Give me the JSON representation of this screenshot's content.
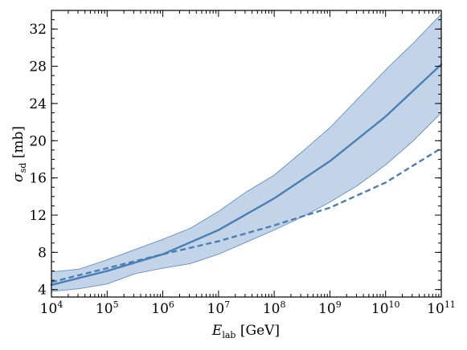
{
  "chart_data": {
    "type": "line",
    "xscale": "log",
    "xlim": [
      10000,
      100000000000
    ],
    "ylim": [
      3.2,
      34
    ],
    "x_ticks": [
      10000,
      100000,
      1000000,
      10000000,
      100000000,
      1000000000,
      10000000000,
      100000000000
    ],
    "x_tick_labels": [
      {
        "base": "10",
        "exp": "4"
      },
      {
        "base": "10",
        "exp": "5"
      },
      {
        "base": "10",
        "exp": "6"
      },
      {
        "base": "10",
        "exp": "7"
      },
      {
        "base": "10",
        "exp": "8"
      },
      {
        "base": "10",
        "exp": "9"
      },
      {
        "base": "10",
        "exp": "10"
      },
      {
        "base": "10",
        "exp": "11"
      }
    ],
    "y_ticks": [
      4,
      8,
      12,
      16,
      20,
      24,
      28,
      32
    ],
    "y_tick_labels": [
      "4",
      "8",
      "12",
      "16",
      "20",
      "24",
      "28",
      "32"
    ],
    "xlabel": {
      "main": "E",
      "sub": "lab",
      "unit": " [GeV]"
    },
    "ylabel": {
      "main": "σ",
      "sub": "sd",
      "unit": " [mb]"
    },
    "grid": false,
    "series": [
      {
        "style": "solid",
        "color": "#4a7fb5",
        "x": [
          10000,
          100000,
          1000000,
          10000000,
          100000000,
          1000000000,
          10000000000,
          100000000000
        ],
        "y": [
          4.5,
          6.0,
          7.8,
          10.4,
          13.8,
          17.8,
          22.6,
          28.2
        ]
      },
      {
        "style": "dashed",
        "color": "#4a7fb5",
        "x": [
          10000,
          100000,
          1000000,
          10000000,
          100000000,
          1000000000,
          10000000000,
          100000000000
        ],
        "y": [
          4.8,
          6.3,
          7.8,
          9.2,
          10.9,
          12.8,
          15.5,
          19.2
        ]
      }
    ],
    "band": {
      "color": "#b8cde4",
      "edge_color": "#6e98c6",
      "x": [
        10000,
        31600,
        100000,
        316000,
        1000000,
        3160000,
        10000000,
        31600000,
        100000000,
        316000000,
        1000000000,
        3160000000,
        10000000000,
        31600000000,
        100000000000
      ],
      "lower": [
        3.8,
        4.1,
        4.6,
        5.7,
        6.3,
        6.8,
        7.8,
        9.1,
        10.4,
        11.8,
        13.4,
        15.2,
        17.4,
        20.0,
        23.0
      ],
      "upper": [
        5.9,
        6.2,
        7.2,
        8.3,
        9.4,
        10.6,
        12.4,
        14.5,
        16.3,
        18.8,
        21.4,
        24.5,
        27.6,
        30.5,
        33.6
      ]
    }
  }
}
